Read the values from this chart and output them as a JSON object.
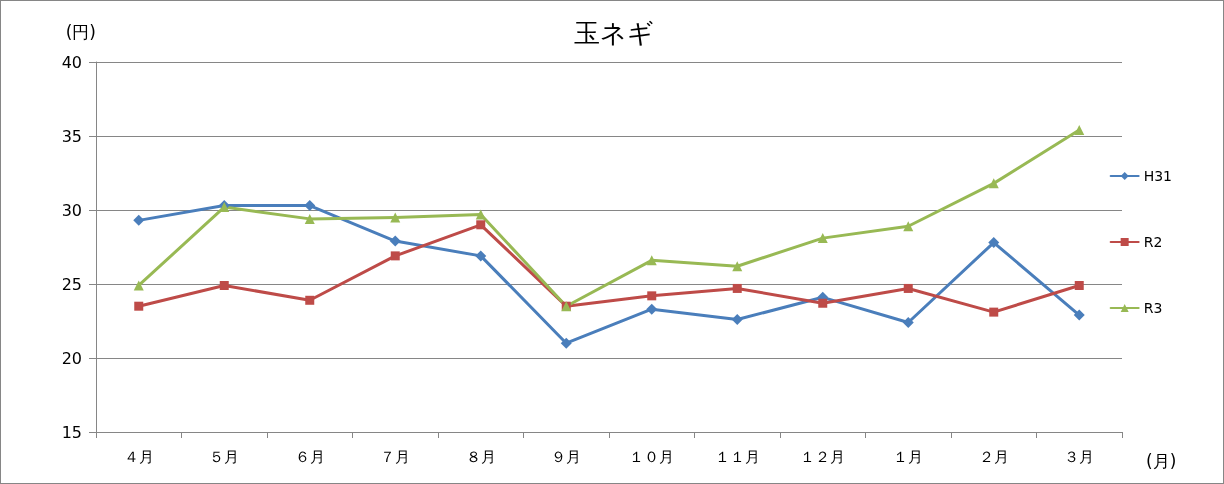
{
  "chart_data": {
    "type": "line",
    "title": "玉ネギ",
    "xlabel": "(月)",
    "ylabel": "(円)",
    "categories": [
      "４月",
      "５月",
      "６月",
      "７月",
      "８月",
      "９月",
      "１０月",
      "１１月",
      "１２月",
      "１月",
      "２月",
      "３月"
    ],
    "series": [
      {
        "name": "H31",
        "color": "#4a7ebb",
        "marker": "diamond",
        "values": [
          29.3,
          30.3,
          30.3,
          27.9,
          26.9,
          21.0,
          23.3,
          22.6,
          24.1,
          22.4,
          27.8,
          22.9
        ]
      },
      {
        "name": "R2",
        "color": "#be4b48",
        "marker": "square",
        "values": [
          23.5,
          24.9,
          23.9,
          26.9,
          29.0,
          23.5,
          24.2,
          24.7,
          23.7,
          24.7,
          23.1,
          24.9
        ]
      },
      {
        "name": "R3",
        "color": "#98b954",
        "marker": "triangle",
        "values": [
          24.9,
          30.2,
          29.4,
          29.5,
          29.7,
          23.5,
          26.6,
          26.2,
          28.1,
          28.9,
          31.8,
          35.4
        ]
      }
    ],
    "ylim": [
      15,
      40
    ],
    "yticks": [
      15,
      20,
      25,
      30,
      35,
      40
    ],
    "grid": "y",
    "legend": "right",
    "line_style": "solid"
  }
}
